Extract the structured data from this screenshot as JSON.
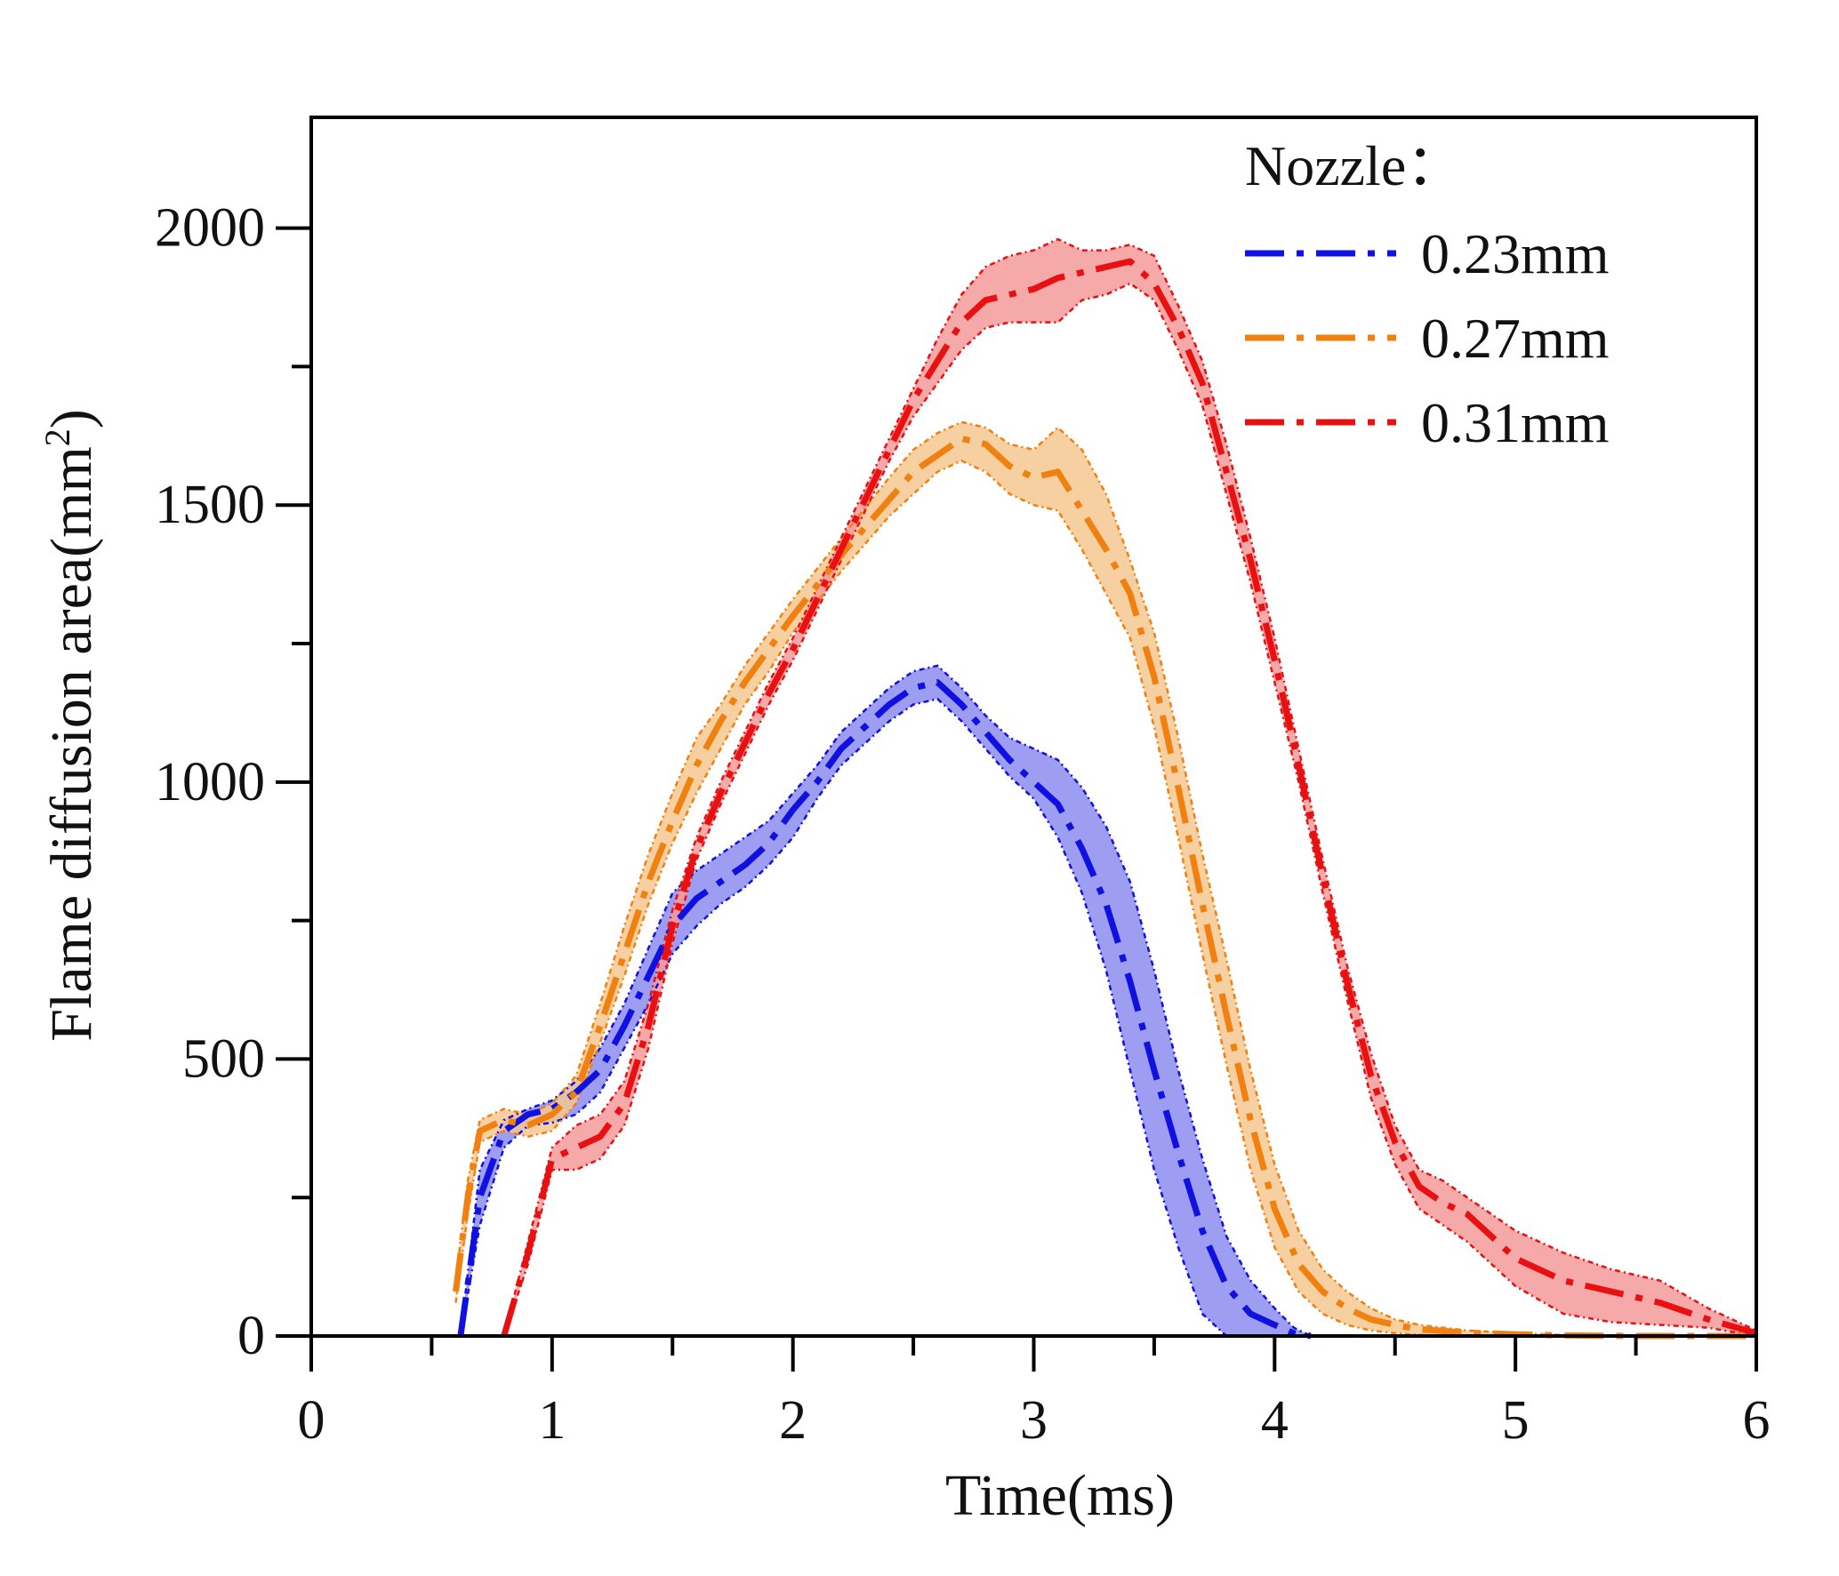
{
  "chart_data": {
    "type": "line",
    "title": "",
    "xlabel": "Time(ms)",
    "ylabel": "Flame diffusion area(mm",
    "ylabel_superscript": "2",
    "ylabel_close": ")",
    "xlim": [
      0,
      6
    ],
    "ylim": [
      0,
      2200
    ],
    "xticks": [
      0,
      1,
      2,
      3,
      4,
      5,
      6
    ],
    "xtick_labels": [
      "0",
      "1",
      "2",
      "3",
      "4",
      "5",
      "6"
    ],
    "x_minor_ticks": [
      0.5,
      1.5,
      2.5,
      3.5,
      4.5,
      5.5
    ],
    "yticks": [
      0,
      500,
      1000,
      1500,
      2000
    ],
    "ytick_labels": [
      "0",
      "500",
      "1000",
      "1500",
      "2000"
    ],
    "y_minor_ticks": [
      250,
      750,
      1250,
      1750
    ],
    "legend": {
      "title": "Nozzle：",
      "position": "top-right"
    },
    "series": [
      {
        "name": "0.23mm",
        "color": "#1010e0",
        "fill": "#8c8cf0",
        "x": [
          0.62,
          0.7,
          0.8,
          0.9,
          1.0,
          1.1,
          1.2,
          1.3,
          1.4,
          1.5,
          1.6,
          1.7,
          1.8,
          1.9,
          2.0,
          2.1,
          2.2,
          2.3,
          2.4,
          2.5,
          2.6,
          2.7,
          2.8,
          2.9,
          3.0,
          3.1,
          3.2,
          3.3,
          3.4,
          3.5,
          3.6,
          3.7,
          3.8,
          3.9,
          4.0,
          4.08,
          4.15
        ],
        "mean": [
          0,
          250,
          370,
          400,
          410,
          440,
          480,
          560,
          650,
          740,
          790,
          820,
          850,
          890,
          950,
          1000,
          1060,
          1100,
          1140,
          1170,
          1180,
          1140,
          1090,
          1040,
          1000,
          960,
          880,
          780,
          640,
          480,
          330,
          190,
          90,
          40,
          20,
          5,
          0
        ],
        "upper": [
          0,
          300,
          390,
          410,
          425,
          460,
          520,
          600,
          700,
          800,
          840,
          870,
          900,
          930,
          980,
          1030,
          1090,
          1130,
          1170,
          1200,
          1210,
          1170,
          1120,
          1080,
          1060,
          1040,
          990,
          920,
          820,
          660,
          480,
          320,
          180,
          100,
          50,
          15,
          0
        ],
        "lower": [
          0,
          200,
          340,
          380,
          385,
          400,
          440,
          520,
          600,
          690,
          740,
          780,
          810,
          850,
          900,
          970,
          1030,
          1070,
          1110,
          1140,
          1150,
          1110,
          1060,
          1010,
          970,
          900,
          800,
          660,
          480,
          300,
          160,
          40,
          0,
          0,
          0,
          0,
          0
        ]
      },
      {
        "name": "0.27mm",
        "color": "#f08010",
        "fill": "#f6c890",
        "x": [
          0.6,
          0.65,
          0.7,
          0.8,
          0.9,
          1.0,
          1.1,
          1.2,
          1.3,
          1.4,
          1.5,
          1.6,
          1.7,
          1.8,
          1.9,
          2.0,
          2.2,
          2.4,
          2.5,
          2.6,
          2.7,
          2.8,
          2.9,
          3.0,
          3.1,
          3.2,
          3.3,
          3.4,
          3.5,
          3.6,
          3.7,
          3.8,
          3.9,
          4.0,
          4.1,
          4.2,
          4.3,
          4.4,
          4.5,
          4.6,
          4.8,
          5.0,
          5.2,
          5.5,
          6.0
        ],
        "mean": [
          80,
          250,
          370,
          390,
          380,
          400,
          440,
          560,
          690,
          820,
          930,
          1030,
          1110,
          1180,
          1240,
          1300,
          1410,
          1510,
          1560,
          1590,
          1620,
          1610,
          1570,
          1550,
          1560,
          1490,
          1420,
          1340,
          1190,
          990,
          780,
          580,
          390,
          230,
          130,
          80,
          50,
          30,
          20,
          12,
          6,
          3,
          1,
          0,
          0
        ],
        "upper": [
          100,
          280,
          390,
          410,
          400,
          420,
          470,
          600,
          740,
          870,
          980,
          1080,
          1140,
          1210,
          1270,
          1330,
          1440,
          1550,
          1600,
          1630,
          1650,
          1640,
          1610,
          1600,
          1640,
          1600,
          1520,
          1400,
          1270,
          1080,
          870,
          680,
          480,
          310,
          190,
          120,
          80,
          50,
          30,
          20,
          10,
          5,
          2,
          0,
          0
        ],
        "lower": [
          60,
          220,
          350,
          370,
          360,
          370,
          420,
          530,
          650,
          780,
          890,
          980,
          1060,
          1140,
          1200,
          1270,
          1380,
          1480,
          1520,
          1560,
          1580,
          1560,
          1520,
          1500,
          1490,
          1420,
          1340,
          1260,
          1100,
          900,
          690,
          490,
          300,
          160,
          80,
          40,
          20,
          10,
          5,
          2,
          0,
          0,
          0,
          0,
          0
        ]
      },
      {
        "name": "0.31mm",
        "color": "#e81010",
        "fill": "#f49a9a",
        "x": [
          0.8,
          0.9,
          1.0,
          1.1,
          1.2,
          1.3,
          1.4,
          1.5,
          1.6,
          1.7,
          1.8,
          1.9,
          2.0,
          2.1,
          2.2,
          2.3,
          2.4,
          2.5,
          2.6,
          2.7,
          2.8,
          2.9,
          3.0,
          3.1,
          3.2,
          3.3,
          3.4,
          3.5,
          3.6,
          3.7,
          3.8,
          3.9,
          4.0,
          4.1,
          4.2,
          4.3,
          4.4,
          4.5,
          4.6,
          4.7,
          4.8,
          4.9,
          5.0,
          5.2,
          5.4,
          5.6,
          5.8,
          6.0
        ],
        "mean": [
          0,
          150,
          320,
          340,
          360,
          420,
          560,
          740,
          880,
          980,
          1070,
          1160,
          1240,
          1330,
          1420,
          1510,
          1600,
          1690,
          1760,
          1830,
          1870,
          1880,
          1890,
          1910,
          1920,
          1930,
          1940,
          1900,
          1820,
          1720,
          1560,
          1400,
          1220,
          1030,
          830,
          640,
          470,
          350,
          270,
          240,
          220,
          180,
          140,
          100,
          80,
          60,
          30,
          5
        ],
        "upper": [
          0,
          170,
          340,
          380,
          400,
          460,
          600,
          770,
          900,
          1000,
          1090,
          1180,
          1260,
          1350,
          1440,
          1530,
          1620,
          1710,
          1800,
          1880,
          1930,
          1950,
          1960,
          1980,
          1960,
          1960,
          1970,
          1950,
          1860,
          1760,
          1610,
          1440,
          1260,
          1060,
          860,
          670,
          510,
          380,
          300,
          280,
          250,
          220,
          190,
          150,
          120,
          100,
          50,
          10
        ],
        "lower": [
          0,
          130,
          300,
          300,
          320,
          380,
          520,
          710,
          860,
          960,
          1050,
          1140,
          1220,
          1310,
          1400,
          1490,
          1580,
          1660,
          1720,
          1780,
          1820,
          1830,
          1830,
          1830,
          1870,
          1880,
          1900,
          1870,
          1780,
          1680,
          1520,
          1360,
          1180,
          1000,
          800,
          610,
          430,
          310,
          230,
          200,
          170,
          130,
          90,
          40,
          25,
          20,
          15,
          0
        ]
      }
    ]
  }
}
